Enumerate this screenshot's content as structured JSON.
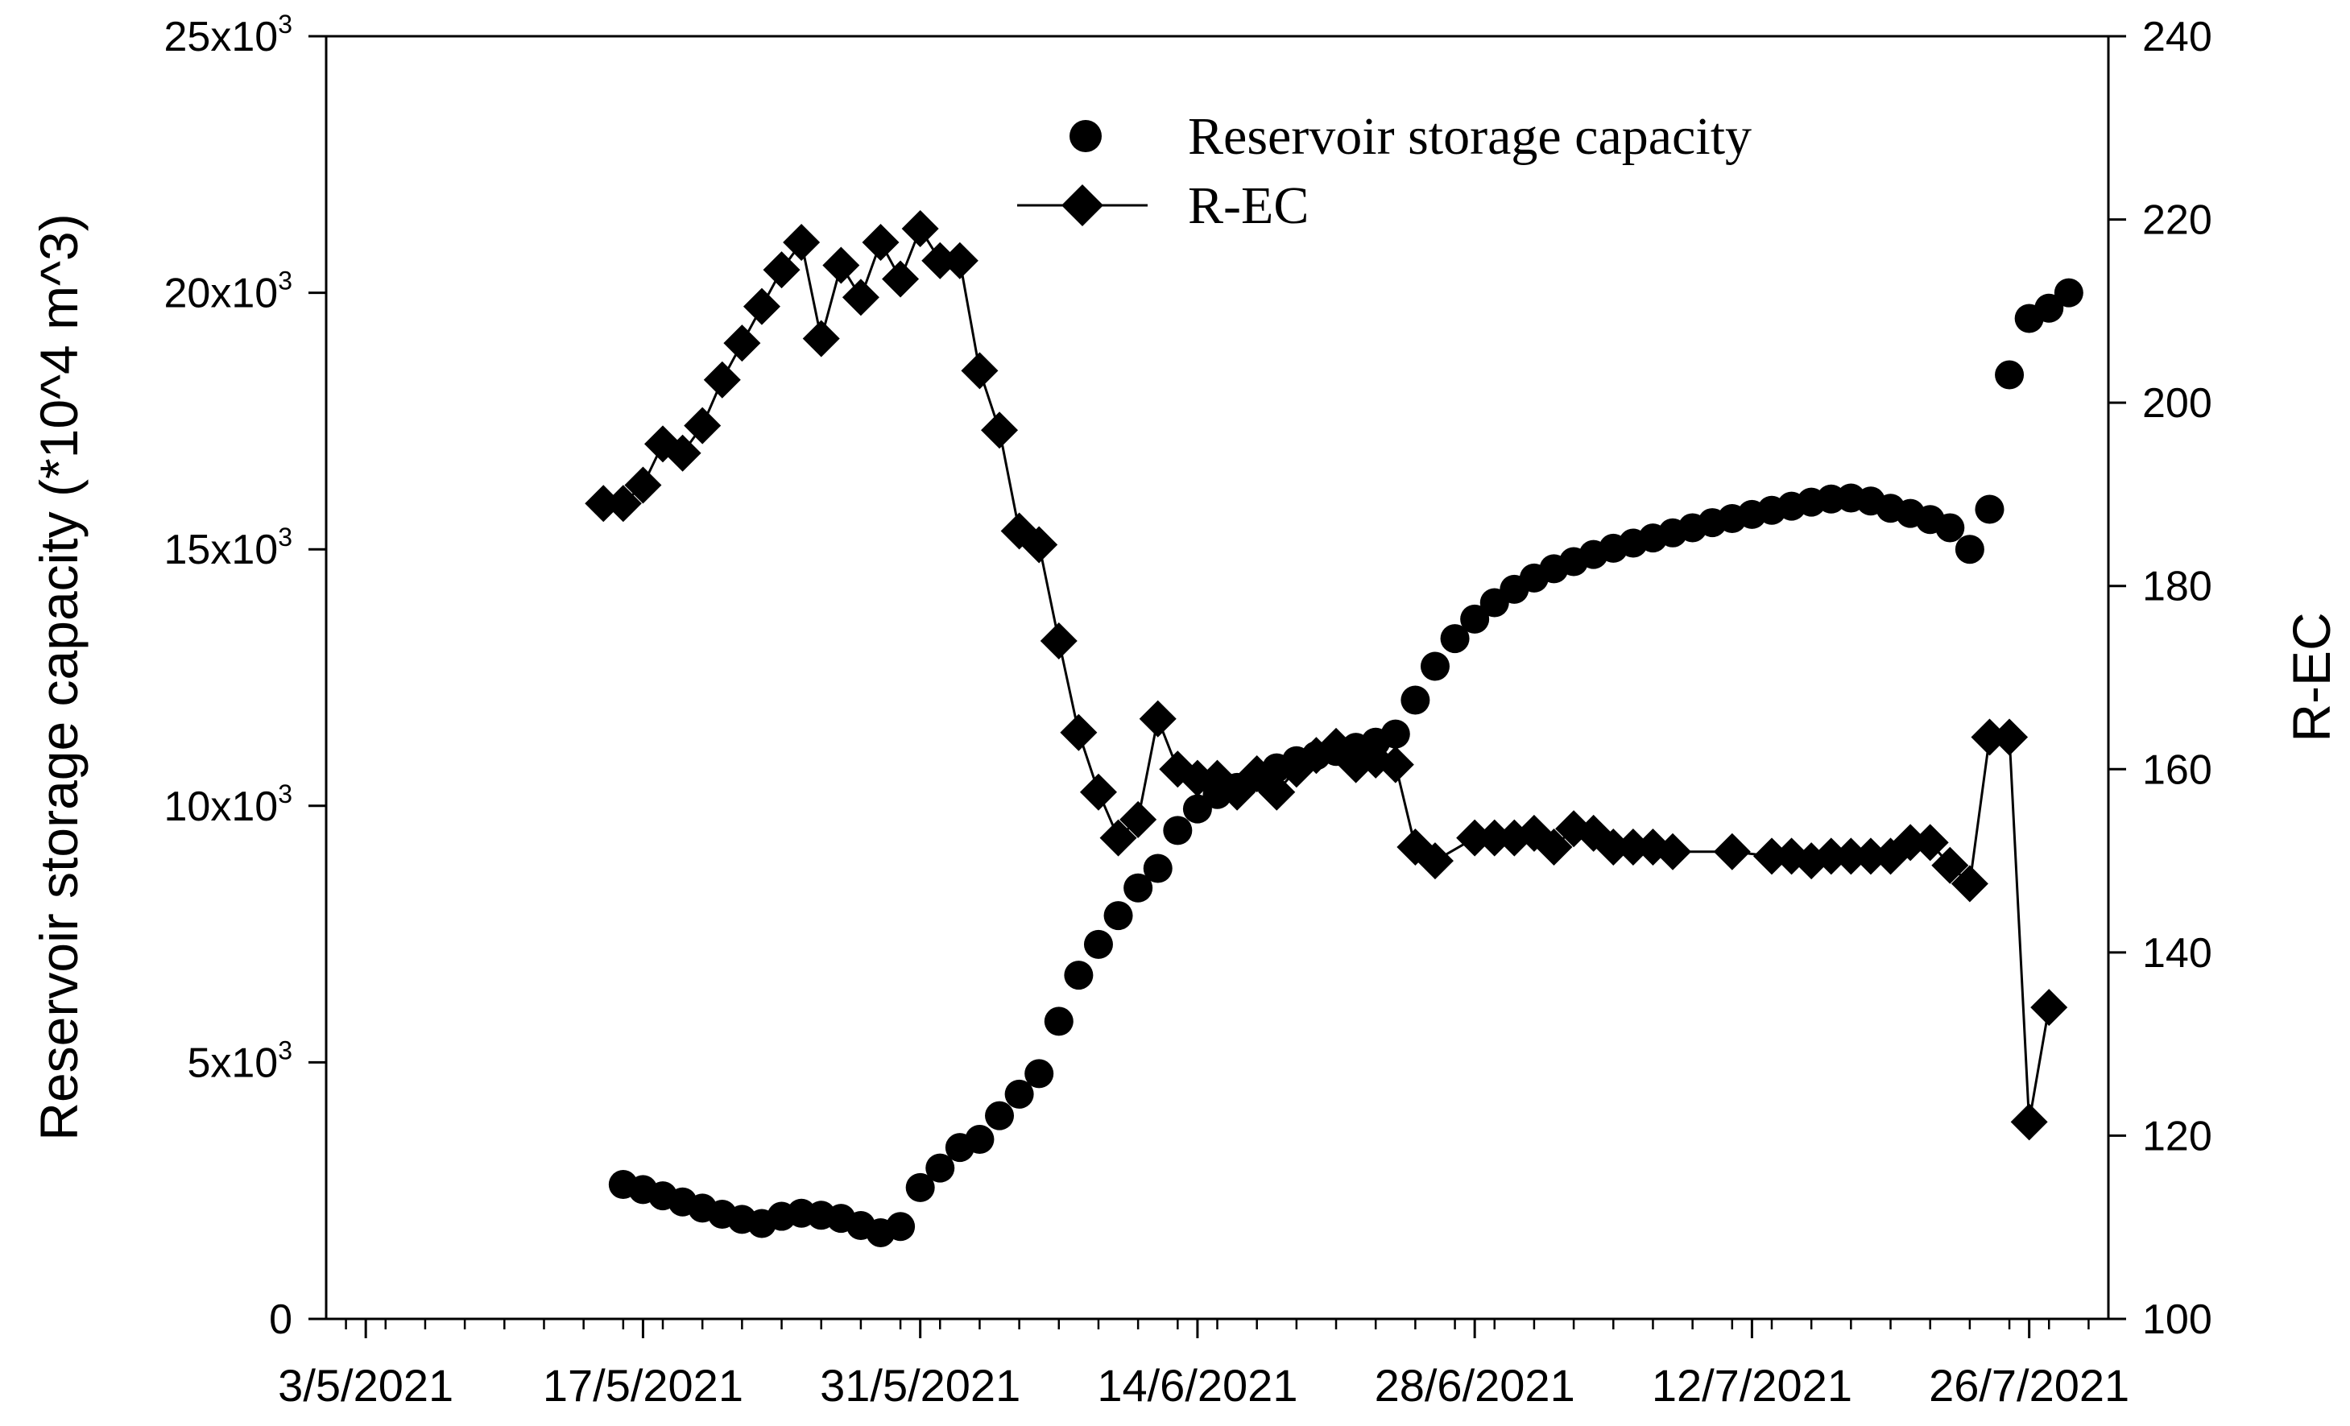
{
  "chart_data": {
    "type": "line",
    "title": "",
    "xlabel": "",
    "ylabel_left": "Reservoir storage capacity (*10^4 m^3)",
    "ylabel_right": "R-EC",
    "x_ticks": [
      "3/5/2021",
      "17/5/2021",
      "31/5/2021",
      "14/6/2021",
      "28/6/2021",
      "12/7/2021",
      "26/7/2021"
    ],
    "x_range": [
      "1/5/2021",
      "30/7/2021"
    ],
    "y_left": {
      "range": [
        0,
        25000
      ],
      "ticks": [
        {
          "value": 0,
          "label": "0"
        },
        {
          "value": 5000,
          "label": "5x10",
          "exp": "3"
        },
        {
          "value": 10000,
          "label": "10x10",
          "exp": "3"
        },
        {
          "value": 15000,
          "label": "15x10",
          "exp": "3"
        },
        {
          "value": 20000,
          "label": "20x10",
          "exp": "3"
        },
        {
          "value": 25000,
          "label": "25x10",
          "exp": "3"
        }
      ]
    },
    "y_right": {
      "range": [
        100,
        240
      ],
      "ticks": [
        100,
        120,
        140,
        160,
        180,
        200,
        220,
        240
      ]
    },
    "grid": false,
    "legend_position": "top-center",
    "series": [
      {
        "name": "Reservoir storage capacity",
        "axis": "left",
        "marker": "circle",
        "line": false,
        "color": "#000000",
        "points": [
          [
            "16/5/2021",
            2620
          ],
          [
            "17/5/2021",
            2520
          ],
          [
            "18/5/2021",
            2400
          ],
          [
            "19/5/2021",
            2280
          ],
          [
            "20/5/2021",
            2160
          ],
          [
            "21/5/2021",
            2040
          ],
          [
            "22/5/2021",
            1940
          ],
          [
            "23/5/2021",
            1860
          ],
          [
            "24/5/2021",
            2000
          ],
          [
            "25/5/2021",
            2060
          ],
          [
            "26/5/2021",
            2020
          ],
          [
            "27/5/2021",
            1960
          ],
          [
            "28/5/2021",
            1820
          ],
          [
            "29/5/2021",
            1680
          ],
          [
            "30/5/2021",
            1800
          ],
          [
            "31/5/2021",
            2560
          ],
          [
            "1/6/2021",
            2940
          ],
          [
            "2/6/2021",
            3340
          ],
          [
            "3/6/2021",
            3500
          ],
          [
            "4/6/2021",
            3960
          ],
          [
            "5/6/2021",
            4380
          ],
          [
            "6/6/2021",
            4780
          ],
          [
            "7/6/2021",
            5800
          ],
          [
            "8/6/2021",
            6700
          ],
          [
            "9/6/2021",
            7300
          ],
          [
            "10/6/2021",
            7860
          ],
          [
            "11/6/2021",
            8400
          ],
          [
            "12/6/2021",
            8780
          ],
          [
            "13/6/2021",
            9520
          ],
          [
            "14/6/2021",
            9940
          ],
          [
            "15/6/2021",
            10220
          ],
          [
            "16/6/2021",
            10360
          ],
          [
            "17/6/2021",
            10560
          ],
          [
            "18/6/2021",
            10740
          ],
          [
            "19/6/2021",
            10880
          ],
          [
            "20/6/2021",
            10980
          ],
          [
            "21/6/2021",
            11060
          ],
          [
            "22/6/2021",
            11140
          ],
          [
            "23/6/2021",
            11240
          ],
          [
            "24/6/2021",
            11400
          ],
          [
            "25/6/2021",
            12060
          ],
          [
            "26/6/2021",
            12720
          ],
          [
            "27/6/2021",
            13260
          ],
          [
            "28/6/2021",
            13640
          ],
          [
            "29/6/2021",
            13960
          ],
          [
            "30/6/2021",
            14220
          ],
          [
            "1/7/2021",
            14440
          ],
          [
            "2/7/2021",
            14620
          ],
          [
            "3/7/2021",
            14760
          ],
          [
            "4/7/2021",
            14900
          ],
          [
            "5/7/2021",
            15020
          ],
          [
            "6/7/2021",
            15120
          ],
          [
            "7/7/2021",
            15220
          ],
          [
            "8/7/2021",
            15320
          ],
          [
            "9/7/2021",
            15420
          ],
          [
            "10/7/2021",
            15520
          ],
          [
            "11/7/2021",
            15600
          ],
          [
            "12/7/2021",
            15680
          ],
          [
            "13/7/2021",
            15760
          ],
          [
            "14/7/2021",
            15840
          ],
          [
            "15/7/2021",
            15920
          ],
          [
            "16/7/2021",
            15980
          ],
          [
            "17/7/2021",
            16000
          ],
          [
            "18/7/2021",
            15940
          ],
          [
            "19/7/2021",
            15800
          ],
          [
            "20/7/2021",
            15700
          ],
          [
            "21/7/2021",
            15580
          ],
          [
            "22/7/2021",
            15420
          ],
          [
            "23/7/2021",
            15000
          ],
          [
            "24/7/2021",
            15780
          ],
          [
            "25/7/2021",
            18400
          ],
          [
            "26/7/2021",
            19500
          ],
          [
            "27/7/2021",
            19700
          ],
          [
            "28/7/2021",
            20000
          ]
        ]
      },
      {
        "name": "R-EC",
        "axis": "right",
        "marker": "diamond",
        "line": true,
        "color": "#000000",
        "points": [
          [
            "15/5/2021",
            189
          ],
          [
            "16/5/2021",
            189
          ],
          [
            "17/5/2021",
            191
          ],
          [
            "18/5/2021",
            195.5
          ],
          [
            "19/5/2021",
            194.5
          ],
          [
            "20/5/2021",
            197.5
          ],
          [
            "21/5/2021",
            202.5
          ],
          [
            "22/5/2021",
            206.5
          ],
          [
            "23/5/2021",
            210.5
          ],
          [
            "24/5/2021",
            214.5
          ],
          [
            "25/5/2021",
            217.5
          ],
          [
            "26/5/2021",
            207
          ],
          [
            "27/5/2021",
            215
          ],
          [
            "28/5/2021",
            211.5
          ],
          [
            "29/5/2021",
            217.5
          ],
          [
            "30/5/2021",
            213.5
          ],
          [
            "31/5/2021",
            219
          ],
          [
            "1/6/2021",
            215.5
          ],
          [
            "2/6/2021",
            215.5
          ],
          [
            "3/6/2021",
            203.5
          ],
          [
            "4/6/2021",
            197
          ],
          [
            "5/6/2021",
            186
          ],
          [
            "6/6/2021",
            184.5
          ],
          [
            "7/6/2021",
            174
          ],
          [
            "8/6/2021",
            164
          ],
          [
            "9/6/2021",
            157.5
          ],
          [
            "10/6/2021",
            152.5
          ],
          [
            "11/6/2021",
            154.5
          ],
          [
            "12/6/2021",
            165.5
          ],
          [
            "13/6/2021",
            160
          ],
          [
            "14/6/2021",
            159
          ],
          [
            "15/6/2021",
            159
          ],
          [
            "16/6/2021",
            157.5
          ],
          [
            "17/6/2021",
            159.5
          ],
          [
            "18/6/2021",
            157.5
          ],
          [
            "19/6/2021",
            160
          ],
          [
            "20/6/2021",
            161.5
          ],
          [
            "21/6/2021",
            162.5
          ],
          [
            "22/6/2021",
            160.5
          ],
          [
            "23/6/2021",
            161
          ],
          [
            "24/6/2021",
            160.5
          ],
          [
            "25/6/2021",
            151.5
          ],
          [
            "26/6/2021",
            150
          ],
          [
            "28/6/2021",
            152.5
          ],
          [
            "29/6/2021",
            152.5
          ],
          [
            "30/6/2021",
            152.5
          ],
          [
            "1/7/2021",
            153
          ],
          [
            "2/7/2021",
            151.5
          ],
          [
            "3/7/2021",
            153.5
          ],
          [
            "4/7/2021",
            153
          ],
          [
            "5/7/2021",
            151.5
          ],
          [
            "6/7/2021",
            151.5
          ],
          [
            "7/7/2021",
            151.5
          ],
          [
            "8/7/2021",
            151
          ],
          [
            "11/7/2021",
            151
          ],
          [
            "13/7/2021",
            150.5
          ],
          [
            "14/7/2021",
            150.5
          ],
          [
            "15/7/2021",
            150
          ],
          [
            "16/7/2021",
            150.5
          ],
          [
            "17/7/2021",
            150.5
          ],
          [
            "18/7/2021",
            150.5
          ],
          [
            "19/7/2021",
            150.5
          ],
          [
            "20/7/2021",
            152
          ],
          [
            "21/7/2021",
            152
          ],
          [
            "22/7/2021",
            149.5
          ],
          [
            "23/7/2021",
            147.5
          ],
          [
            "24/7/2021",
            163.5
          ],
          [
            "25/7/2021",
            163.5
          ],
          [
            "26/7/2021",
            121.5
          ],
          [
            "27/7/2021",
            134
          ]
        ]
      }
    ]
  }
}
